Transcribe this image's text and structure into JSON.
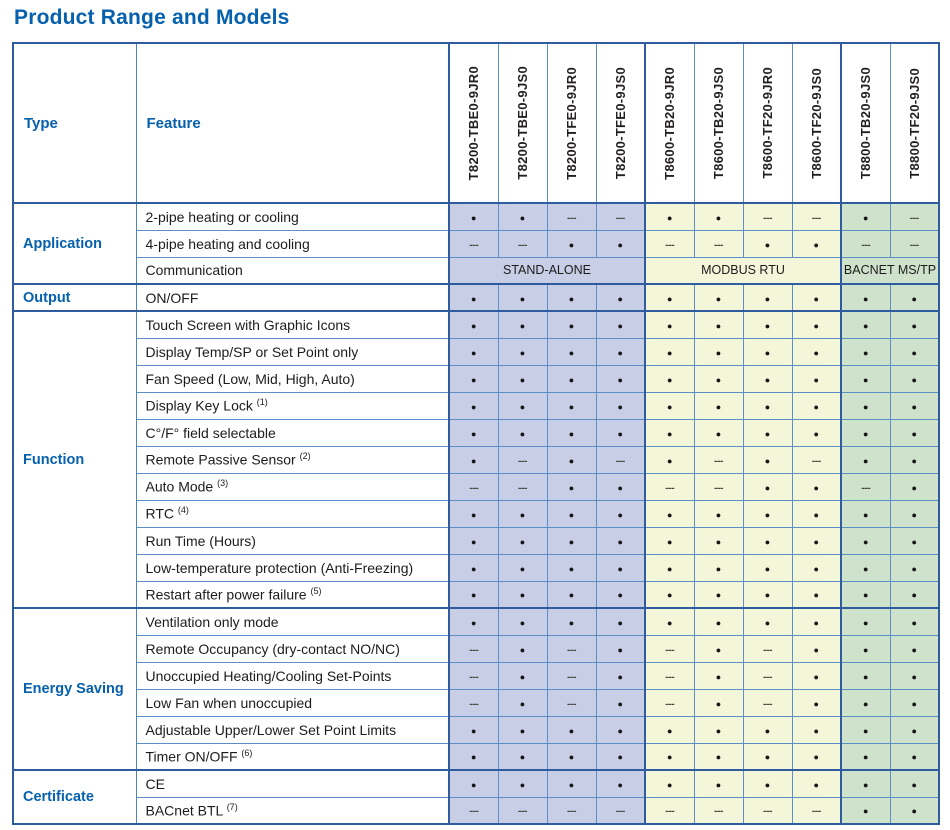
{
  "page_title": "Product Range and Models",
  "colors": {
    "title_blue": "#0560ad",
    "border_dark": "#2e5c9e",
    "border_light": "#5b8fc6",
    "group_purple": "#c7cee6",
    "group_yellow": "#f4f6da",
    "group_green": "#cfe3cc"
  },
  "legend": {
    "dot_char": "●",
    "dash_char": "---"
  },
  "table": {
    "corner": {
      "type_label": "Type",
      "feature_label": "Feature"
    },
    "models": [
      {
        "name": "T8200-TBE0-9JR0",
        "group": "purple"
      },
      {
        "name": "T8200-TBE0-9JS0",
        "group": "purple"
      },
      {
        "name": "T8200-TFE0-9JR0",
        "group": "purple"
      },
      {
        "name": "T8200-TFE0-9JS0",
        "group": "purple"
      },
      {
        "name": "T8600-TB20-9JR0",
        "group": "yellow"
      },
      {
        "name": "T8600-TB20-9JS0",
        "group": "yellow"
      },
      {
        "name": "T8600-TF20-9JR0",
        "group": "yellow"
      },
      {
        "name": "T8600-TF20-9JS0",
        "group": "yellow"
      },
      {
        "name": "T8800-TB20-9JS0",
        "group": "green"
      },
      {
        "name": "T8800-TF20-9JS0",
        "group": "green"
      }
    ],
    "sections": [
      {
        "label": "Application",
        "rows": [
          {
            "feature": "2-pipe heating or cooling",
            "values": [
              "dot",
              "dot",
              "dash",
              "dash",
              "dot",
              "dot",
              "dash",
              "dash",
              "dot",
              "dash"
            ]
          },
          {
            "feature": "4-pipe heating and cooling",
            "values": [
              "dash",
              "dash",
              "dot",
              "dot",
              "dash",
              "dash",
              "dot",
              "dot",
              "dash",
              "dash"
            ]
          },
          {
            "feature": "Communication",
            "merged": [
              {
                "label": "STAND-ALONE",
                "span": 4,
                "group": "purple"
              },
              {
                "label": "MODBUS RTU",
                "span": 4,
                "group": "yellow"
              },
              {
                "label": "BACNET MS/TP",
                "span": 2,
                "group": "green"
              }
            ]
          }
        ]
      },
      {
        "label": "Output",
        "rows": [
          {
            "feature": "ON/OFF",
            "values": [
              "dot",
              "dot",
              "dot",
              "dot",
              "dot",
              "dot",
              "dot",
              "dot",
              "dot",
              "dot"
            ]
          }
        ]
      },
      {
        "label": "Function",
        "rows": [
          {
            "feature": "Touch Screen with Graphic Icons",
            "values": [
              "dot",
              "dot",
              "dot",
              "dot",
              "dot",
              "dot",
              "dot",
              "dot",
              "dot",
              "dot"
            ]
          },
          {
            "feature": "Display Temp/SP or Set Point only",
            "values": [
              "dot",
              "dot",
              "dot",
              "dot",
              "dot",
              "dot",
              "dot",
              "dot",
              "dot",
              "dot"
            ]
          },
          {
            "feature": "Fan Speed (Low, Mid, High, Auto)",
            "values": [
              "dot",
              "dot",
              "dot",
              "dot",
              "dot",
              "dot",
              "dot",
              "dot",
              "dot",
              "dot"
            ]
          },
          {
            "feature": "Display Key Lock",
            "sup": "(1)",
            "values": [
              "dot",
              "dot",
              "dot",
              "dot",
              "dot",
              "dot",
              "dot",
              "dot",
              "dot",
              "dot"
            ]
          },
          {
            "feature": "C°/F° field selectable",
            "values": [
              "dot",
              "dot",
              "dot",
              "dot",
              "dot",
              "dot",
              "dot",
              "dot",
              "dot",
              "dot"
            ]
          },
          {
            "feature": "Remote Passive Sensor",
            "sup": "(2)",
            "values": [
              "dot",
              "dash",
              "dot",
              "dash",
              "dot",
              "dash",
              "dot",
              "dash",
              "dot",
              "dot"
            ]
          },
          {
            "feature": "Auto Mode",
            "sup": "(3)",
            "values": [
              "dash",
              "dash",
              "dot",
              "dot",
              "dash",
              "dash",
              "dot",
              "dot",
              "dash",
              "dot"
            ]
          },
          {
            "feature": "RTC",
            "sup": "(4)",
            "values": [
              "dot",
              "dot",
              "dot",
              "dot",
              "dot",
              "dot",
              "dot",
              "dot",
              "dot",
              "dot"
            ]
          },
          {
            "feature": "Run Time (Hours)",
            "values": [
              "dot",
              "dot",
              "dot",
              "dot",
              "dot",
              "dot",
              "dot",
              "dot",
              "dot",
              "dot"
            ]
          },
          {
            "feature": "Low-temperature protection (Anti-Freezing)",
            "values": [
              "dot",
              "dot",
              "dot",
              "dot",
              "dot",
              "dot",
              "dot",
              "dot",
              "dot",
              "dot"
            ]
          },
          {
            "feature": "Restart after power failure",
            "sup": "(5)",
            "values": [
              "dot",
              "dot",
              "dot",
              "dot",
              "dot",
              "dot",
              "dot",
              "dot",
              "dot",
              "dot"
            ]
          }
        ]
      },
      {
        "label": "Energy Saving",
        "rows": [
          {
            "feature": "Ventilation only mode",
            "values": [
              "dot",
              "dot",
              "dot",
              "dot",
              "dot",
              "dot",
              "dot",
              "dot",
              "dot",
              "dot"
            ]
          },
          {
            "feature": "Remote Occupancy (dry-contact NO/NC)",
            "values": [
              "dash",
              "dot",
              "dash",
              "dot",
              "dash",
              "dot",
              "dash",
              "dot",
              "dot",
              "dot"
            ]
          },
          {
            "feature": "Unoccupied Heating/Cooling Set-Points",
            "values": [
              "dash",
              "dot",
              "dash",
              "dot",
              "dash",
              "dot",
              "dash",
              "dot",
              "dot",
              "dot"
            ]
          },
          {
            "feature": "Low Fan when unoccupied",
            "values": [
              "dash",
              "dot",
              "dash",
              "dot",
              "dash",
              "dot",
              "dash",
              "dot",
              "dot",
              "dot"
            ]
          },
          {
            "feature": "Adjustable Upper/Lower Set Point Limits",
            "values": [
              "dot",
              "dot",
              "dot",
              "dot",
              "dot",
              "dot",
              "dot",
              "dot",
              "dot",
              "dot"
            ]
          },
          {
            "feature": "Timer ON/OFF",
            "sup": "(6)",
            "values": [
              "dot",
              "dot",
              "dot",
              "dot",
              "dot",
              "dot",
              "dot",
              "dot",
              "dot",
              "dot"
            ]
          }
        ]
      },
      {
        "label": "Certificate",
        "rows": [
          {
            "feature": "CE",
            "values": [
              "dot",
              "dot",
              "dot",
              "dot",
              "dot",
              "dot",
              "dot",
              "dot",
              "dot",
              "dot"
            ]
          },
          {
            "feature": "BACnet BTL",
            "sup": "(7)",
            "values": [
              "dash",
              "dash",
              "dash",
              "dash",
              "dash",
              "dash",
              "dash",
              "dash",
              "dot",
              "dot"
            ]
          }
        ]
      }
    ]
  }
}
